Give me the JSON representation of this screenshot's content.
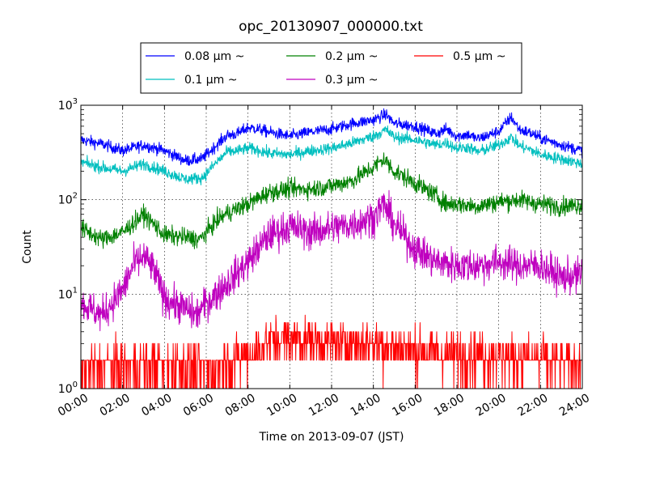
{
  "chart_data": {
    "type": "line",
    "title": "opc_20130907_000000.txt",
    "xlabel": "Time on 2013-09-07 (JST)",
    "ylabel": "Count",
    "x_range": [
      "00:00",
      "24:00"
    ],
    "xticks": [
      "00:00",
      "02:00",
      "04:00",
      "06:00",
      "08:00",
      "10:00",
      "12:00",
      "14:00",
      "16:00",
      "18:00",
      "20:00",
      "22:00",
      "24:00"
    ],
    "y_scale": "log",
    "ylim": [
      1,
      1000
    ],
    "yticks": [
      {
        "value": 1,
        "base": "10",
        "exp": "0"
      },
      {
        "value": 10,
        "base": "10",
        "exp": "1"
      },
      {
        "value": 100,
        "base": "10",
        "exp": "2"
      },
      {
        "value": 1000,
        "base": "10",
        "exp": "3"
      }
    ],
    "grid": true,
    "legend_position": "top-center",
    "series": [
      {
        "name": "0.08 μm ~",
        "color": "#0000ff",
        "noise": 0.14,
        "x": [
          0,
          1,
          2,
          3,
          4,
          5,
          5.8,
          6.5,
          7,
          7.5,
          8,
          8.5,
          9,
          10,
          11,
          12,
          13,
          14,
          14.6,
          15,
          16,
          17,
          17.5,
          18,
          18.5,
          19,
          20,
          20.6,
          21,
          21.5,
          22,
          23,
          24
        ],
        "y": [
          430,
          390,
          330,
          380,
          330,
          260,
          270,
          380,
          480,
          500,
          580,
          560,
          520,
          470,
          520,
          560,
          640,
          700,
          800,
          640,
          600,
          500,
          560,
          470,
          490,
          440,
          530,
          750,
          550,
          510,
          450,
          380,
          330
        ]
      },
      {
        "name": "0.1 μm ~",
        "color": "#00bfbf",
        "noise": 0.14,
        "x": [
          0,
          1,
          2,
          3,
          4,
          5,
          5.8,
          6.5,
          7,
          7.5,
          8,
          8.5,
          9,
          10,
          11,
          12,
          13,
          14,
          14.6,
          15,
          16,
          17,
          17.5,
          18,
          18.5,
          19,
          20,
          20.6,
          21,
          21.5,
          22,
          23,
          24
        ],
        "y": [
          250,
          220,
          200,
          240,
          200,
          165,
          170,
          250,
          320,
          330,
          350,
          335,
          310,
          300,
          330,
          350,
          400,
          470,
          550,
          460,
          430,
          380,
          400,
          350,
          360,
          320,
          380,
          460,
          370,
          340,
          300,
          270,
          240
        ]
      },
      {
        "name": "0.2 μm ~",
        "color": "#008000",
        "noise": 0.22,
        "x": [
          0,
          1,
          2,
          3,
          3.5,
          4,
          5,
          5.7,
          6.5,
          7,
          8,
          9,
          10,
          11,
          12,
          13,
          14,
          14.5,
          15,
          16,
          17,
          17.5,
          18,
          19,
          20,
          21,
          22,
          23,
          24
        ],
        "y": [
          50,
          38,
          45,
          70,
          55,
          42,
          40,
          38,
          60,
          72,
          90,
          120,
          130,
          130,
          140,
          160,
          220,
          270,
          200,
          150,
          110,
          90,
          90,
          85,
          95,
          100,
          90,
          85,
          88
        ]
      },
      {
        "name": "0.3 μm ~",
        "color": "#bf00bf",
        "noise": 0.42,
        "x": [
          0,
          1,
          2,
          2.5,
          3,
          3.5,
          4,
          5,
          5.5,
          6,
          7,
          8,
          9,
          10,
          11,
          12,
          13,
          14,
          14.5,
          15,
          16,
          17,
          18,
          19,
          20,
          21,
          22,
          23,
          24
        ],
        "y": [
          8,
          6,
          11,
          20,
          25,
          18,
          9,
          7,
          6,
          8,
          13,
          22,
          42,
          52,
          45,
          50,
          55,
          65,
          90,
          55,
          30,
          22,
          20,
          20,
          22,
          20,
          20,
          15,
          16
        ]
      },
      {
        "name": "0.5 μm ~",
        "color": "#ff0000",
        "noise": 0,
        "x": [
          0,
          2,
          4,
          6,
          8,
          9,
          10,
          12,
          14,
          16,
          18,
          20,
          22,
          24
        ],
        "y": [
          1.6,
          1.8,
          1.8,
          1.6,
          2.2,
          3.2,
          3.5,
          3.0,
          3.0,
          2.5,
          2.3,
          2.2,
          2.0,
          1.8
        ]
      }
    ]
  }
}
